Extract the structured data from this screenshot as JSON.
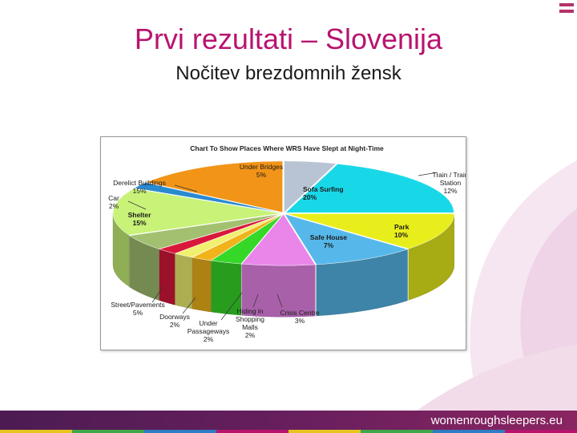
{
  "slide": {
    "title": "Prvi rezultati – Slovenija",
    "subtitle": "Nočitev brezdomnih žensk",
    "footer": "womenroughsleepers.eu",
    "accent": "#b8146e"
  },
  "chart_data": {
    "type": "pie",
    "title": "Chart To Show Places Where WRS Have Slept at Night-Time",
    "style": "3d-exploded",
    "legend": "none",
    "series": [
      {
        "label": "Under Bridges",
        "pct_label": "5%",
        "value": 5,
        "color": "#b8c4d4"
      },
      {
        "label": "Sofa Surfing",
        "pct_label": "20%",
        "value": 20,
        "color": "#18d8e8"
      },
      {
        "label": "Train / Train Station",
        "pct_label": "12%",
        "value": 12,
        "color": "#e8ee1c"
      },
      {
        "label": "Park",
        "pct_label": "10%",
        "value": 10,
        "color": "#56b8ea"
      },
      {
        "label": "Safe House",
        "pct_label": "7%",
        "value": 7,
        "color": "#ea86ea"
      },
      {
        "label": "Crisis Centre",
        "pct_label": "3%",
        "value": 3,
        "color": "#36d828"
      },
      {
        "label": "Hiding in Shopping Malls",
        "pct_label": "2%",
        "value": 2,
        "color": "#f0b41a"
      },
      {
        "label": "Under Passageways",
        "pct_label": "2%",
        "value": 2,
        "color": "#f0f070"
      },
      {
        "label": "Doorways",
        "pct_label": "2%",
        "value": 2,
        "color": "#d8183a"
      },
      {
        "label": "Street/Pavements",
        "pct_label": "5%",
        "value": 5,
        "color": "#a2c070"
      },
      {
        "label": "Shelter",
        "pct_label": "15%",
        "value": 15,
        "color": "#c8f278"
      },
      {
        "label": "Car",
        "pct_label": "2%",
        "value": 2,
        "color": "#2a8ad0"
      },
      {
        "label": "Derelict Buildings",
        "pct_label": "15%",
        "value": 15,
        "color": "#f29418"
      }
    ]
  }
}
